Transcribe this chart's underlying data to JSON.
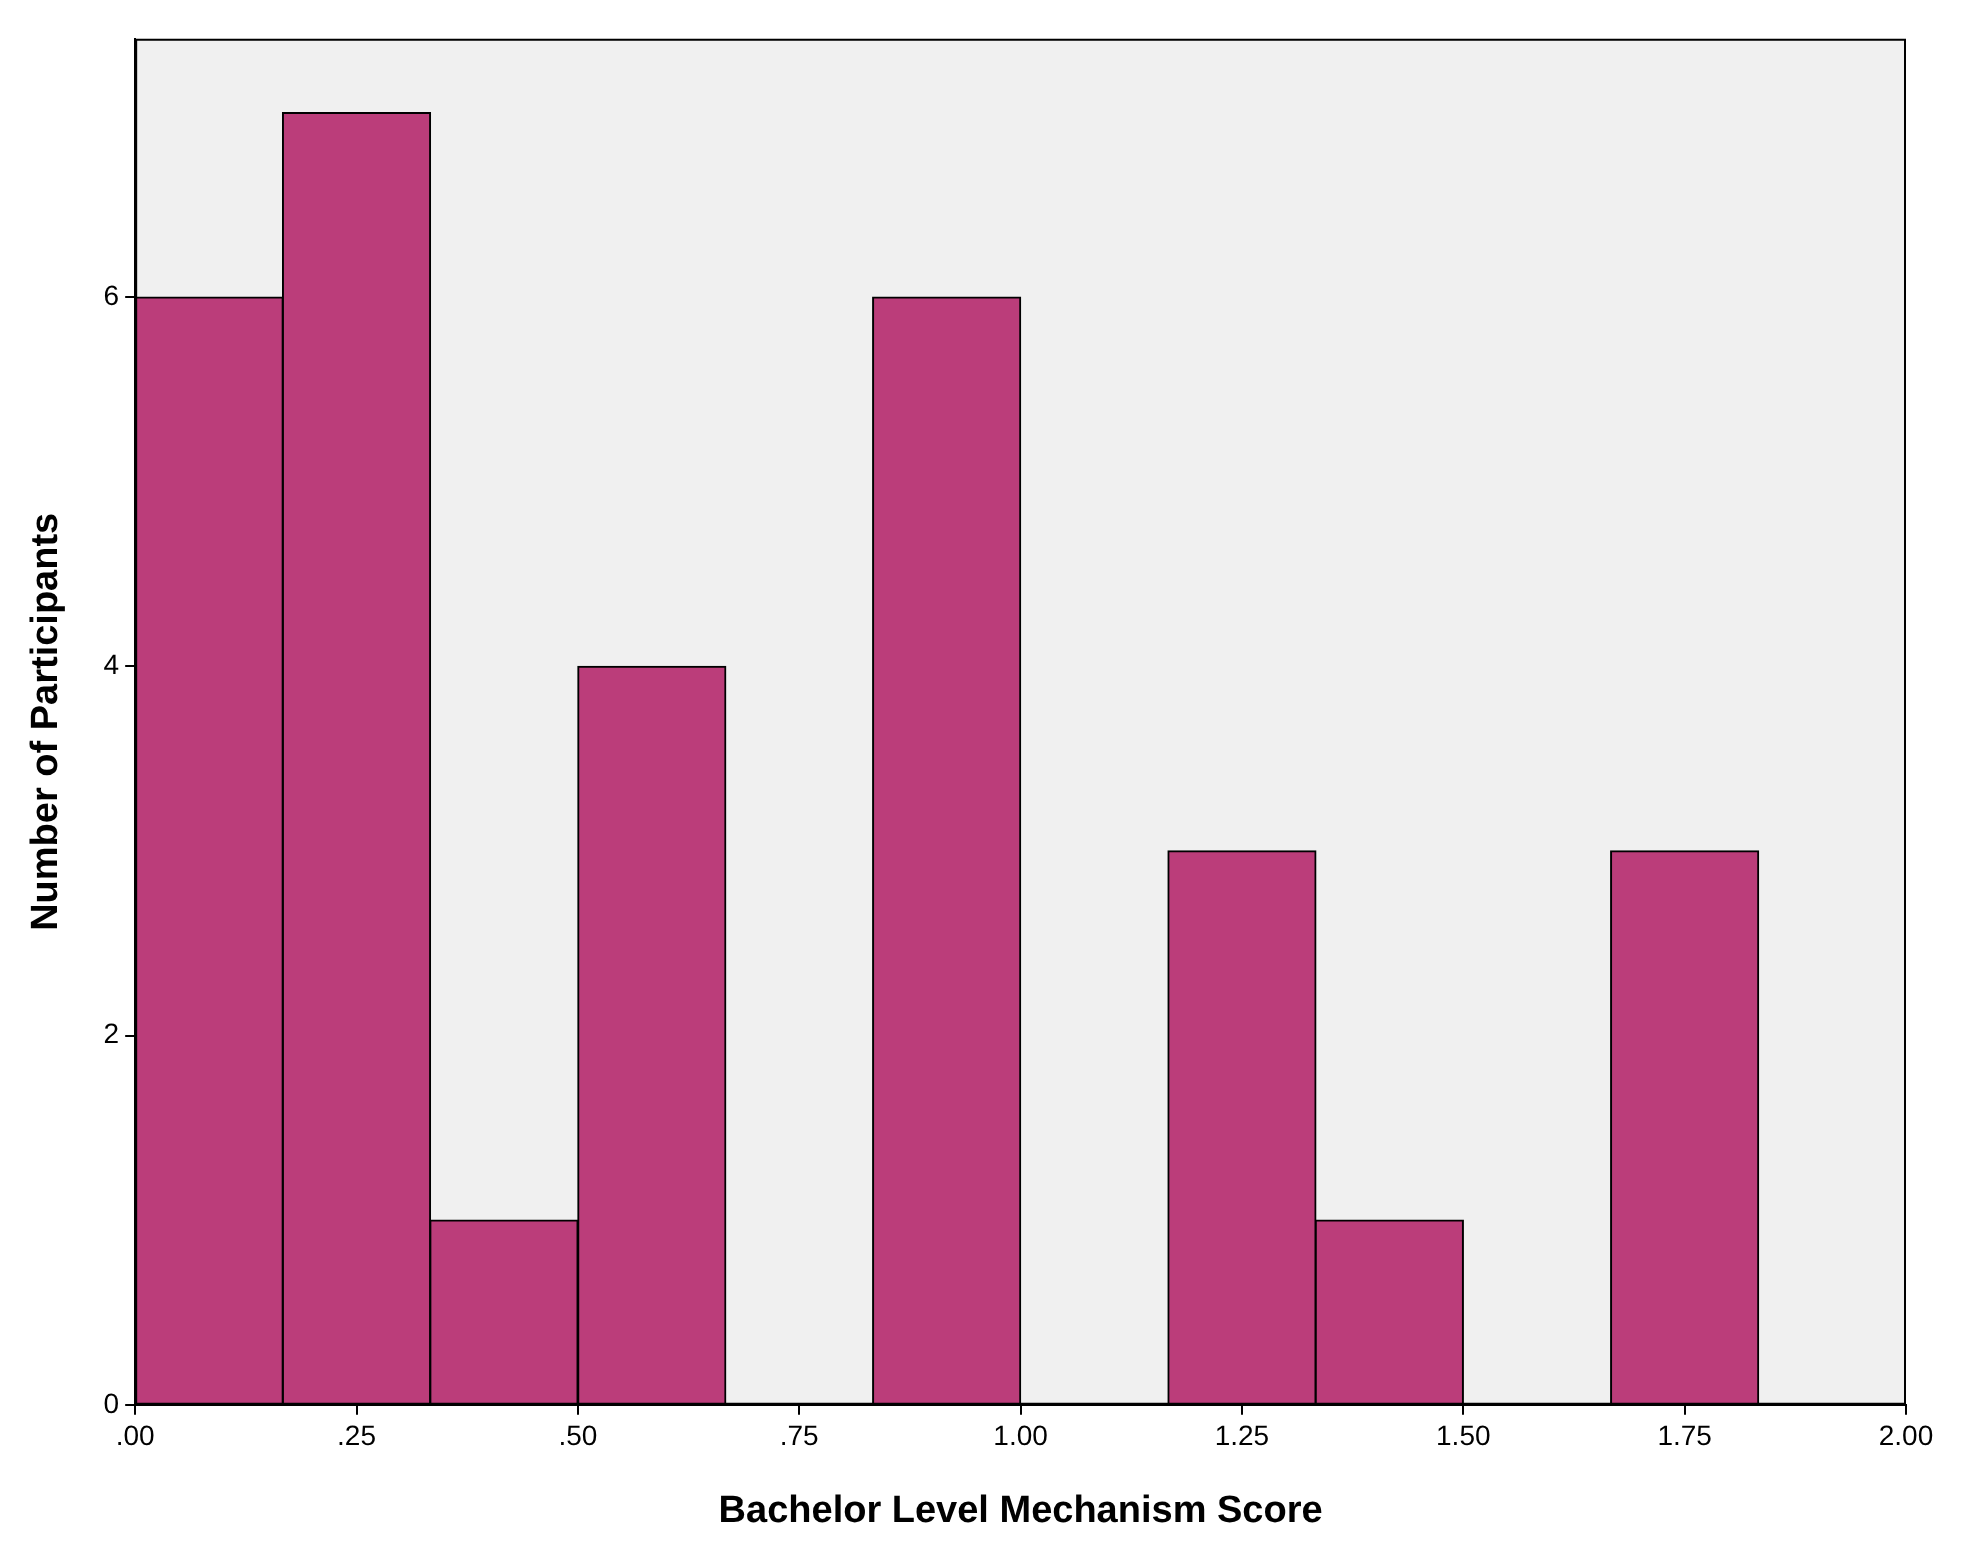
{
  "chart_data": {
    "type": "histogram",
    "xlabel": "Bachelor Level Mechanism Score",
    "ylabel": "Number of Participants",
    "bins": [
      0,
      0.167,
      0.333,
      0.5,
      0.667,
      0.833,
      1.0,
      1.167,
      1.333,
      1.5,
      1.667,
      1.833,
      2.0
    ],
    "values": [
      6,
      7,
      1,
      4,
      0,
      6,
      0,
      3,
      1,
      0,
      3,
      0
    ],
    "color": "#bb3d7a",
    "xlim": [
      0,
      2.0
    ],
    "xticks": [
      {
        "value": 0,
        "label": ".00"
      },
      {
        "value": 0.25,
        "label": ".25"
      },
      {
        "value": 0.5,
        "label": ".50"
      },
      {
        "value": 0.75,
        "label": ".75"
      },
      {
        "value": 1.0,
        "label": "1.00"
      },
      {
        "value": 1.25,
        "label": "1.25"
      },
      {
        "value": 1.5,
        "label": "1.50"
      },
      {
        "value": 1.75,
        "label": "1.75"
      },
      {
        "value": 2.0,
        "label": "2.00"
      }
    ],
    "ylim": [
      0,
      7.4
    ],
    "yticks": [
      0,
      2,
      4,
      6
    ],
    "grid": false,
    "legend": false
  }
}
